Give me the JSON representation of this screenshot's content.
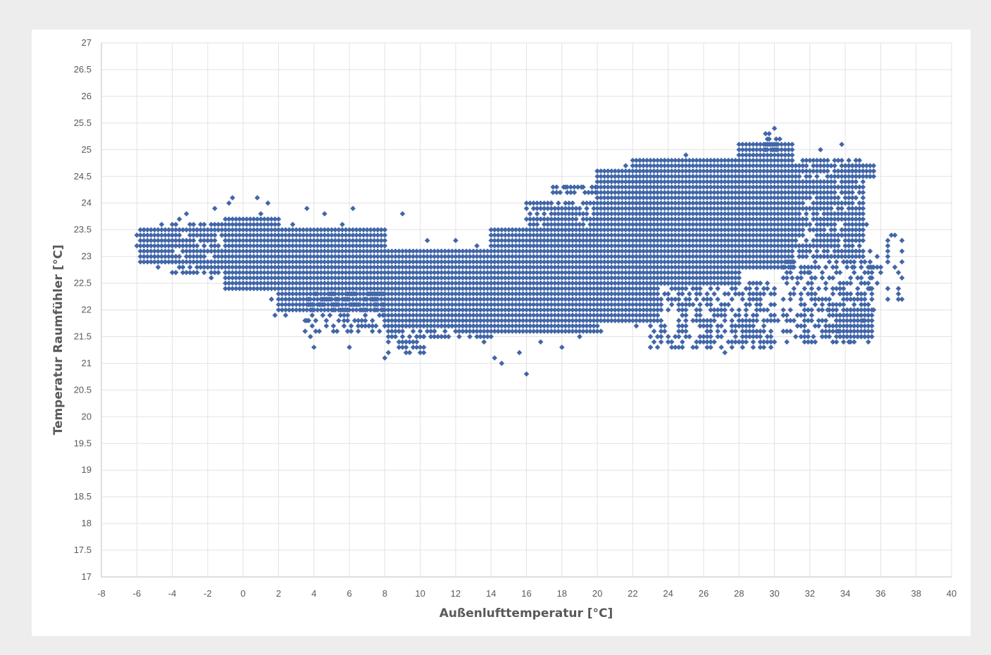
{
  "chart_data": {
    "type": "scatter",
    "title": "",
    "xlabel": "Außenlufttemperatur [°C]",
    "ylabel": "Temperatur Raumfühler [°C]",
    "xlim": [
      -8,
      40
    ],
    "ylim": [
      17,
      27
    ],
    "x_ticks": [
      "-8",
      "-6",
      "-4",
      "-2",
      "0",
      "2",
      "4",
      "6",
      "8",
      "10",
      "12",
      "14",
      "16",
      "18",
      "20",
      "22",
      "24",
      "26",
      "28",
      "30",
      "32",
      "34",
      "36",
      "38",
      "40"
    ],
    "y_ticks": [
      "17",
      "17.5",
      "18",
      "18.5",
      "19",
      "19.5",
      "20",
      "20.5",
      "21",
      "21.5",
      "22",
      "22.5",
      "23",
      "23.5",
      "24",
      "24.5",
      "25",
      "25.5",
      "26",
      "26.5",
      "27"
    ],
    "grid": true,
    "legend": "none",
    "marker": "diamond",
    "series": [
      {
        "color": "#4166a8",
        "points": [
          [
            -6,
            23.2
          ],
          [
            -6,
            23.4
          ],
          [
            -5.6,
            23.5
          ],
          [
            -5.4,
            23.3
          ],
          [
            -5,
            23.0
          ],
          [
            -4.8,
            22.8
          ],
          [
            -4.6,
            23.6
          ],
          [
            -4.4,
            22.9
          ],
          [
            -4,
            23.2
          ],
          [
            -3.8,
            22.7
          ],
          [
            -3.6,
            23.7
          ],
          [
            -3.2,
            23.8
          ],
          [
            -3,
            22.8
          ],
          [
            -2.6,
            23.5
          ],
          [
            -2.4,
            23.0
          ],
          [
            -2,
            23.3
          ],
          [
            -1.8,
            22.6
          ],
          [
            -1.6,
            23.9
          ],
          [
            -1.2,
            23.1
          ],
          [
            -1,
            22.7
          ],
          [
            -0.8,
            24.0
          ],
          [
            -0.6,
            24.1
          ],
          [
            -0.4,
            23.6
          ],
          [
            0,
            22.5
          ],
          [
            0,
            23.2
          ],
          [
            0.4,
            23.0
          ],
          [
            0.8,
            24.1
          ],
          [
            1,
            23.8
          ],
          [
            1.2,
            22.4
          ],
          [
            1.6,
            22.2
          ],
          [
            1.4,
            24.0
          ],
          [
            1.8,
            21.9
          ],
          [
            2,
            23.4
          ],
          [
            2.4,
            21.9
          ],
          [
            2.8,
            23.6
          ],
          [
            3,
            22.6
          ],
          [
            3.4,
            23.0
          ],
          [
            3.6,
            21.8
          ],
          [
            3.8,
            21.5
          ],
          [
            3.6,
            23.9
          ],
          [
            4,
            21.3
          ],
          [
            4.4,
            22.2
          ],
          [
            4.6,
            23.8
          ],
          [
            5,
            22.8
          ],
          [
            5.4,
            21.8
          ],
          [
            5.6,
            23.6
          ],
          [
            6,
            21.3
          ],
          [
            6.2,
            23.9
          ],
          [
            6.6,
            23.0
          ],
          [
            7,
            22.6
          ],
          [
            7.4,
            22.0
          ],
          [
            7.6,
            23.5
          ],
          [
            8,
            21.1
          ],
          [
            8.2,
            21.2
          ],
          [
            8.6,
            22.4
          ],
          [
            8.8,
            21.3
          ],
          [
            9,
            23.8
          ],
          [
            9.4,
            23.1
          ],
          [
            9.8,
            21.5
          ],
          [
            10,
            22.2
          ],
          [
            10.4,
            23.3
          ],
          [
            10.8,
            21.6
          ],
          [
            11.2,
            22.8
          ],
          [
            11.6,
            21.7
          ],
          [
            12,
            23.3
          ],
          [
            12.4,
            22.0
          ],
          [
            12.8,
            21.6
          ],
          [
            13.2,
            23.2
          ],
          [
            13.6,
            21.4
          ],
          [
            14,
            22.6
          ],
          [
            14.2,
            21.1
          ],
          [
            14.6,
            21.0
          ],
          [
            15,
            22.0
          ],
          [
            15.2,
            23.5
          ],
          [
            15.6,
            21.2
          ],
          [
            16,
            20.8
          ],
          [
            16.2,
            22.8
          ],
          [
            16.6,
            23.7
          ],
          [
            16.8,
            21.4
          ],
          [
            17,
            22.3
          ],
          [
            17.4,
            24.0
          ],
          [
            17.8,
            22.9
          ],
          [
            18,
            21.3
          ],
          [
            18.2,
            24.3
          ],
          [
            18.6,
            22.2
          ],
          [
            19,
            21.5
          ],
          [
            19.2,
            24.3
          ],
          [
            19.6,
            23.2
          ],
          [
            20,
            24.6
          ],
          [
            20.2,
            21.6
          ],
          [
            20.4,
            23.8
          ],
          [
            20.8,
            22.6
          ],
          [
            21,
            24.5
          ],
          [
            21.4,
            21.8
          ],
          [
            21.6,
            24.7
          ],
          [
            22,
            23.2
          ],
          [
            22.2,
            21.7
          ],
          [
            22.4,
            24.8
          ],
          [
            22.8,
            22.0
          ],
          [
            23,
            21.3
          ],
          [
            23.2,
            24.6
          ],
          [
            23.6,
            22.5
          ],
          [
            23.8,
            24.8
          ],
          [
            24,
            21.4
          ],
          [
            24.2,
            23.3
          ],
          [
            24.6,
            22.3
          ],
          [
            25,
            24.9
          ],
          [
            25.2,
            21.5
          ],
          [
            25.6,
            24.3
          ],
          [
            26,
            22.6
          ],
          [
            26.2,
            21.6
          ],
          [
            26.6,
            24.8
          ],
          [
            27,
            23.7
          ],
          [
            27.2,
            21.2
          ],
          [
            27.6,
            22.4
          ],
          [
            28,
            24.9
          ],
          [
            28.2,
            21.4
          ],
          [
            28.6,
            23.6
          ],
          [
            29,
            25.1
          ],
          [
            29.2,
            22.5
          ],
          [
            29.6,
            25.2
          ],
          [
            30,
            25.4
          ],
          [
            30.2,
            21.8
          ],
          [
            30.4,
            24.2
          ],
          [
            30.8,
            25.0
          ],
          [
            31,
            22.6
          ],
          [
            31.2,
            21.5
          ],
          [
            31.6,
            24.6
          ],
          [
            32,
            22.7
          ],
          [
            32.2,
            21.5
          ],
          [
            32.4,
            23.9
          ],
          [
            32.6,
            25.0
          ],
          [
            33,
            22.0
          ],
          [
            33.2,
            23.3
          ],
          [
            33.6,
            21.6
          ],
          [
            33.8,
            25.1
          ],
          [
            34,
            24.2
          ],
          [
            34.2,
            21.4
          ],
          [
            34.4,
            22.8
          ],
          [
            34.6,
            24.6
          ],
          [
            35,
            21.8
          ],
          [
            35.2,
            23.6
          ],
          [
            35.4,
            24.5
          ],
          [
            35.6,
            22.0
          ],
          [
            35.6,
            24.6
          ],
          [
            36,
            22.7
          ],
          [
            36.4,
            22.9
          ],
          [
            36.8,
            23.4
          ],
          [
            37,
            22.2
          ],
          [
            37.2,
            23.3
          ]
        ]
      }
    ],
    "clusters": [
      {
        "x": [
          -5.8,
          -4.0
        ],
        "y": [
          22.9,
          23.5
        ],
        "density": 1.0
      },
      {
        "x": [
          -4.0,
          -1.0
        ],
        "y": [
          22.7,
          23.6
        ],
        "density": 0.8
      },
      {
        "x": [
          -1.0,
          2.0
        ],
        "y": [
          22.4,
          23.7
        ],
        "density": 1.0
      },
      {
        "x": [
          2.0,
          8.0
        ],
        "y": [
          22.0,
          23.5
        ],
        "density": 1.0
      },
      {
        "x": [
          3.5,
          8.0
        ],
        "y": [
          21.6,
          22.3
        ],
        "density": 0.45
      },
      {
        "x": [
          8.0,
          14.0
        ],
        "y": [
          21.7,
          23.1
        ],
        "density": 1.0
      },
      {
        "x": [
          8.2,
          10.2
        ],
        "y": [
          21.2,
          21.8
        ],
        "density": 0.5
      },
      {
        "x": [
          10.0,
          14.0
        ],
        "y": [
          21.5,
          22.0
        ],
        "density": 0.6
      },
      {
        "x": [
          14.0,
          20.0
        ],
        "y": [
          21.6,
          23.5
        ],
        "density": 1.0
      },
      {
        "x": [
          16.0,
          20.0
        ],
        "y": [
          23.2,
          24.0
        ],
        "density": 0.9
      },
      {
        "x": [
          17.5,
          20.0
        ],
        "y": [
          24.2,
          24.3
        ],
        "density": 0.8
      },
      {
        "x": [
          20.0,
          23.5
        ],
        "y": [
          21.8,
          24.6
        ],
        "density": 1.0
      },
      {
        "x": [
          22.0,
          28.0
        ],
        "y": [
          22.5,
          24.8
        ],
        "density": 1.0
      },
      {
        "x": [
          23.0,
          30.0
        ],
        "y": [
          21.3,
          22.5
        ],
        "density": 0.55
      },
      {
        "x": [
          28.0,
          31.0
        ],
        "y": [
          22.8,
          25.1
        ],
        "density": 1.0
      },
      {
        "x": [
          29.5,
          30.4
        ],
        "y": [
          25.0,
          25.3
        ],
        "density": 0.7
      },
      {
        "x": [
          31.0,
          35.0
        ],
        "y": [
          23.0,
          24.8
        ],
        "density": 0.85
      },
      {
        "x": [
          34.0,
          35.6
        ],
        "y": [
          24.5,
          24.7
        ],
        "density": 1.0
      },
      {
        "x": [
          30.5,
          35.5
        ],
        "y": [
          21.4,
          22.9
        ],
        "density": 0.5
      },
      {
        "x": [
          33.5,
          35.5
        ],
        "y": [
          21.5,
          22.0
        ],
        "density": 0.9
      },
      {
        "x": [
          35.4,
          37.2
        ],
        "y": [
          22.2,
          23.4
        ],
        "density": 0.25
      }
    ]
  }
}
